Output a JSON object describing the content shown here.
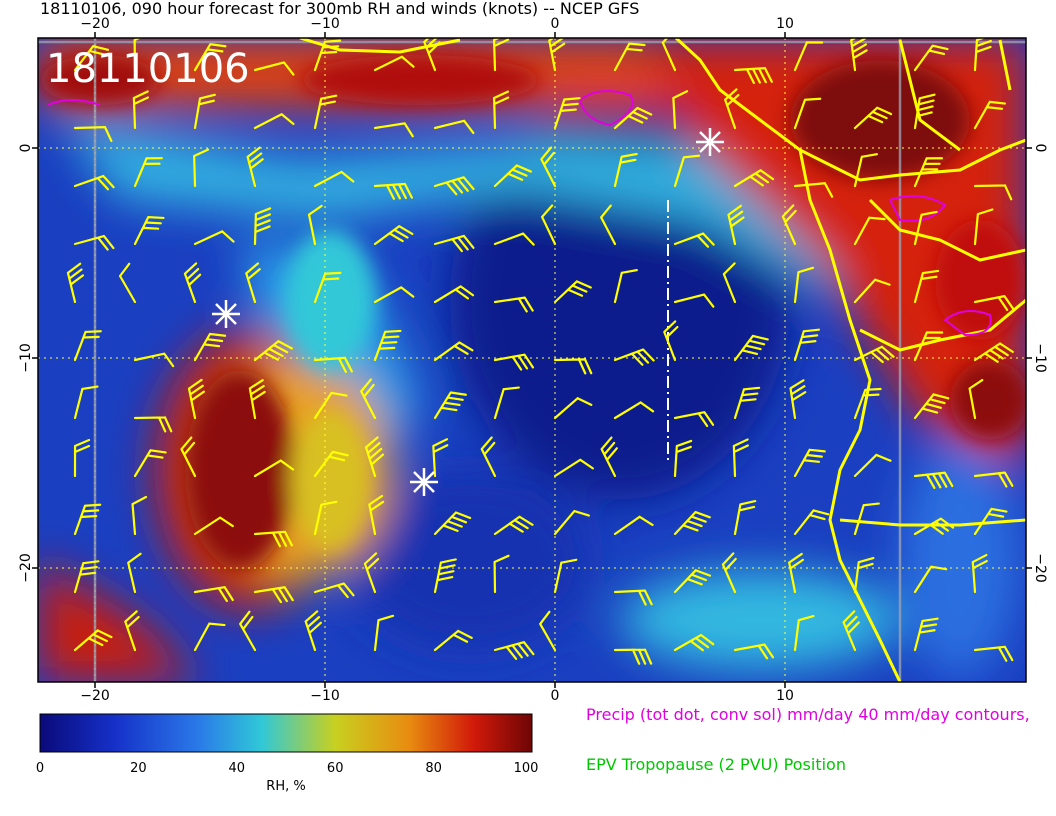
{
  "title": "18110106, 090 hour forecast for 300mb RH and winds (knots) -- NCEP GFS",
  "stamp": "18110106",
  "x_ticks_top": [
    "−20",
    "−10",
    "0",
    "10"
  ],
  "x_ticks_bottom": [
    "−20",
    "−10",
    "0",
    "10"
  ],
  "y_ticks_left": [
    "0",
    "−10",
    "−20"
  ],
  "y_ticks_right": [
    "0",
    "−10",
    "−20"
  ],
  "colorbar": {
    "label": "RH, %",
    "ticks": [
      "0",
      "20",
      "40",
      "60",
      "80",
      "100"
    ],
    "colors": [
      "#0a0a7a",
      "#1530c8",
      "#2a78e8",
      "#30c8d8",
      "#c8d020",
      "#e88c10",
      "#d21a0a",
      "#6e0505"
    ]
  },
  "legend": {
    "precip": "Precip (tot dot, conv sol) mm/day 40 mm/day contours,",
    "precip_color": "#e000e0",
    "tropopause": "EPV Tropopause (2 PVU) Position",
    "tropopause_color": "#00c800"
  },
  "colors": {
    "wind_barb": "#ffff00",
    "coastline": "#ffff00",
    "marker": "#ffffff",
    "gridline": "#ffff40"
  }
}
